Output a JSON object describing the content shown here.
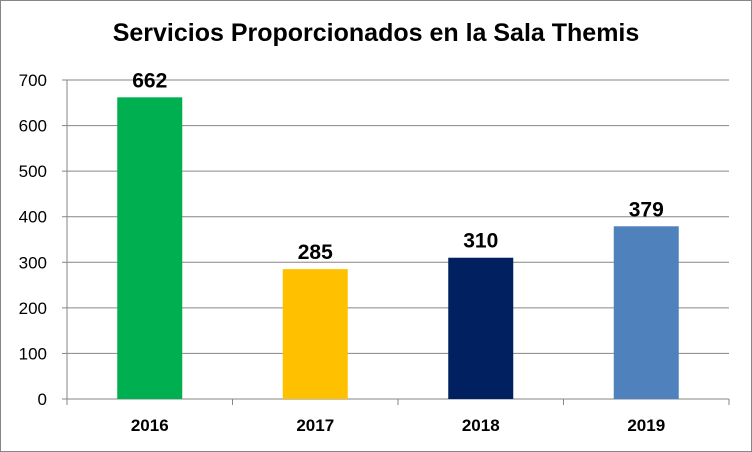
{
  "chart_data": {
    "type": "bar",
    "title": "Servicios Proporcionados en la Sala Themis",
    "xlabel": "",
    "ylabel": "",
    "categories": [
      "2016",
      "2017",
      "2018",
      "2019"
    ],
    "values": [
      662,
      285,
      310,
      379
    ],
    "data_labels": [
      "662",
      "285",
      "310",
      "379"
    ],
    "bar_colors": [
      "#00B050",
      "#FFC000",
      "#002060",
      "#4F81BD"
    ],
    "ylim": [
      0,
      700
    ],
    "yticks": [
      0,
      100,
      200,
      300,
      400,
      500,
      600,
      700
    ],
    "grid": true,
    "legend": "none"
  }
}
